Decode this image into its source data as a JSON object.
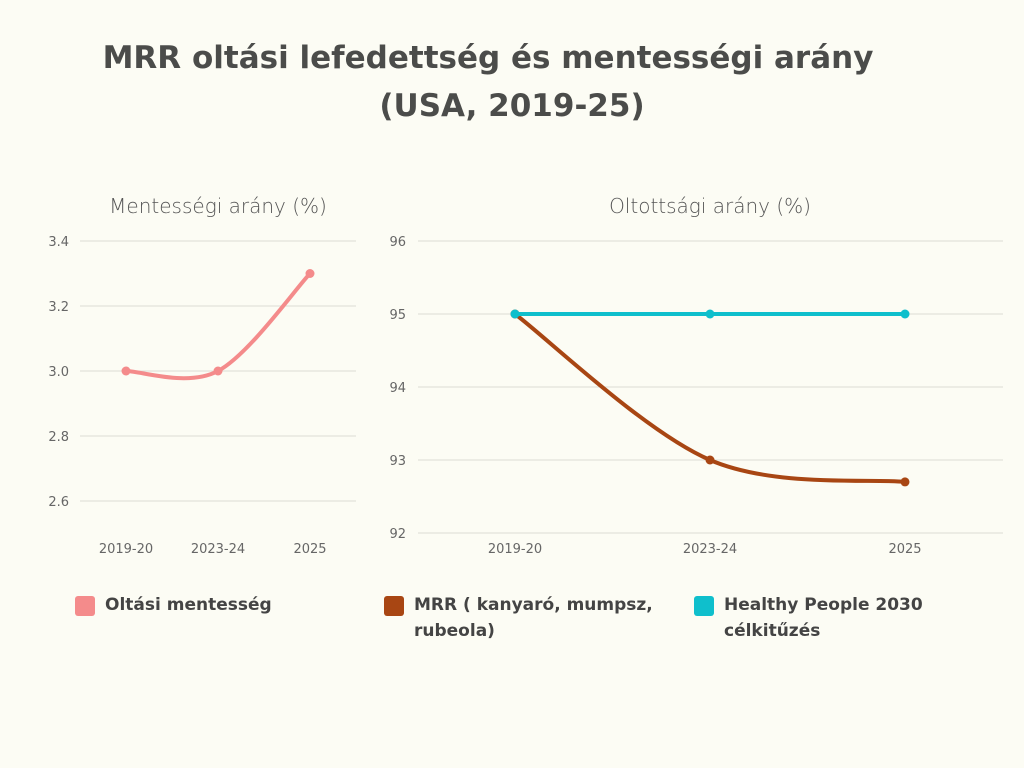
{
  "title": {
    "line1": "MRR oltási lefedettség és mentességi arány",
    "line2": "(USA, 2019-25)"
  },
  "chart_data": [
    {
      "type": "line",
      "title": "Mentességi arány (%)",
      "categories": [
        "2019-20",
        "2023-24",
        "2025"
      ],
      "ylim": [
        2.6,
        3.4
      ],
      "yticks": [
        "3.4",
        "3.2",
        "3.0",
        "2.8",
        "2.6"
      ],
      "ytick_values": [
        3.4,
        3.2,
        3.0,
        2.8,
        2.6
      ],
      "series": [
        {
          "name": "Oltási mentesség",
          "color": "#f48b8b",
          "values": [
            3.0,
            3.0,
            3.3
          ]
        }
      ]
    },
    {
      "type": "line",
      "title": "Oltottsági arány (%)",
      "categories": [
        "2019-20",
        "2023-24",
        "2025"
      ],
      "ylim": [
        92,
        96
      ],
      "yticks": [
        "96",
        "95",
        "94",
        "93",
        "92"
      ],
      "ytick_values": [
        96,
        95,
        94,
        93,
        92
      ],
      "series": [
        {
          "name": "MRR ( kanyaró, mumpsz, rubeola)",
          "color": "#a84613",
          "values": [
            95,
            93,
            92.7
          ]
        },
        {
          "name": "Healthy People 2030 célkitűzés",
          "color": "#0fbfcc",
          "values": [
            95,
            95,
            95
          ]
        }
      ]
    }
  ],
  "legend": [
    {
      "line1": "Oltási mentesség",
      "line2": "",
      "color": "#f48b8b"
    },
    {
      "line1": "MRR ( kanyaró, mumpsz,",
      "line2": "rubeola)",
      "color": "#a84613"
    },
    {
      "line1": "Healthy People 2030",
      "line2": "célkitűzés",
      "color": "#0fbfcc"
    }
  ]
}
